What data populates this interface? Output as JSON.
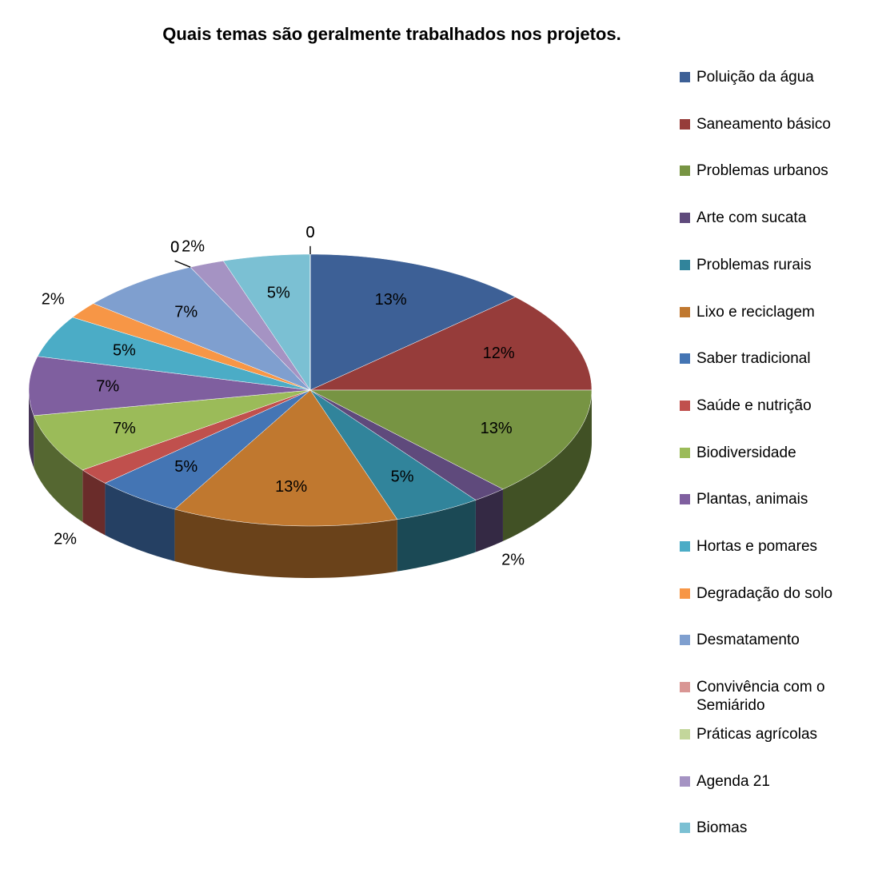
{
  "chart_data": {
    "type": "pie3d",
    "title": "Quais temas são geralmente trabalhados nos projetos.",
    "categories": [
      "Poluição da água",
      "Saneamento básico",
      "Problemas urbanos",
      "Arte com sucata",
      "Problemas rurais",
      "Lixo e reciclagem",
      "Saber tradicional",
      "Saúde e nutrição",
      "Biodiversidade",
      "Plantas, animais",
      "Hortas e pomares",
      "Degradação do solo",
      "Desmatamento",
      "Convivência com o Semiárido",
      "Práticas agrícolas",
      "Agenda 21",
      "Biomas",
      null,
      null
    ],
    "values": [
      13,
      12,
      13,
      2,
      5,
      13,
      5,
      2,
      7,
      7,
      5,
      2,
      7,
      0,
      0,
      2,
      5,
      0,
      0
    ],
    "value_labels": [
      "13%",
      "12%",
      "13%",
      "2%",
      "5%",
      "13%",
      "5%",
      "2%",
      "7%",
      "7%",
      "5%",
      "2%",
      "7%",
      "0",
      "0",
      "2%",
      "5%",
      "0",
      "0"
    ],
    "colors": [
      "#3d6096",
      "#963c3a",
      "#779443",
      "#5f4a7c",
      "#31849b",
      "#c0782f",
      "#4475b4",
      "#c0504d",
      "#9bbb59",
      "#7f5f9f",
      "#4bacc6",
      "#f79646",
      "#7f9fcf",
      "#d99694",
      "#c3d69b",
      "#a593c3",
      "#7bc0d3",
      "#888888",
      "#888888"
    ],
    "legend": "right"
  }
}
